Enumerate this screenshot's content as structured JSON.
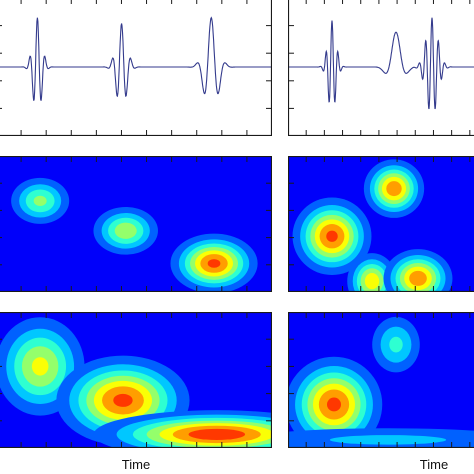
{
  "chart_data": [
    {
      "type": "line",
      "panel": "left-top",
      "title": "",
      "xlabel": "",
      "ylabel": "",
      "xlim": [
        0,
        10
      ],
      "ylim": [
        -1,
        1
      ],
      "grid": false,
      "series": [
        {
          "color": "#333a8c",
          "wavelets": [
            {
              "center": 1.5,
              "amplitude": 0.85,
              "period": 0.28,
              "width": 0.22
            },
            {
              "center": 4.55,
              "amplitude": 0.75,
              "period": 0.34,
              "width": 0.26
            },
            {
              "center": 7.8,
              "amplitude": 0.85,
              "period": 0.55,
              "width": 0.33
            }
          ]
        }
      ]
    },
    {
      "type": "line",
      "panel": "right-top",
      "title": "",
      "xlabel": "",
      "ylabel": "",
      "xlim": [
        0,
        10
      ],
      "ylim": [
        -1,
        1
      ],
      "grid": false,
      "series": [
        {
          "color": "#333a8c",
          "wavelets": [
            {
              "center": 2.2,
              "amplitude": 0.8,
              "period": 0.3,
              "width": 0.28
            },
            {
              "center": 5.4,
              "amplitude": 0.6,
              "period": 1.4,
              "width": 0.45
            },
            {
              "center": 7.2,
              "amplitude": 0.85,
              "period": 0.32,
              "width": 0.4
            }
          ]
        }
      ]
    },
    {
      "type": "heatmap",
      "panel": "left-middle",
      "title": "",
      "xlabel": "",
      "ylabel": "",
      "colormap": "jet",
      "xlim": [
        0,
        10
      ],
      "ylim": [
        0,
        10
      ],
      "blobs": [
        {
          "x": 1.6,
          "y": 6.7,
          "sx": 0.28,
          "sy": 0.9,
          "peak": 0.55
        },
        {
          "x": 4.7,
          "y": 4.5,
          "sx": 0.3,
          "sy": 0.9,
          "peak": 0.6
        },
        {
          "x": 7.9,
          "y": 2.1,
          "sx": 0.36,
          "sy": 1.0,
          "peak": 0.85
        }
      ]
    },
    {
      "type": "heatmap",
      "panel": "right-middle",
      "title": "",
      "xlabel": "",
      "ylabel": "",
      "colormap": "jet",
      "xlim": [
        0,
        10
      ],
      "ylim": [
        0,
        10
      ],
      "blobs": [
        {
          "x": 2.2,
          "y": 4.1,
          "sx": 0.45,
          "sy": 1.3,
          "peak": 0.85
        },
        {
          "x": 5.3,
          "y": 7.6,
          "sx": 0.35,
          "sy": 1.0,
          "peak": 0.8
        },
        {
          "x": 4.2,
          "y": 0.8,
          "sx": 0.3,
          "sy": 1.0,
          "peak": 0.7
        },
        {
          "x": 6.5,
          "y": 1.0,
          "sx": 0.4,
          "sy": 1.0,
          "peak": 0.8
        }
      ]
    },
    {
      "type": "heatmap",
      "panel": "left-bottom",
      "title": "",
      "xlabel": "Time",
      "ylabel": "",
      "colormap": "jet",
      "xlim": [
        0,
        10
      ],
      "ylim": [
        0,
        10
      ],
      "blobs": [
        {
          "x": 1.6,
          "y": 6.0,
          "sx": 0.4,
          "sy": 1.8,
          "peak": 0.65
        },
        {
          "x": 4.6,
          "y": 3.5,
          "sx": 0.55,
          "sy": 1.5,
          "peak": 0.85
        },
        {
          "x": 8.0,
          "y": 1.0,
          "sx": 1.0,
          "sy": 0.8,
          "peak": 0.9
        }
      ]
    },
    {
      "type": "heatmap",
      "panel": "right-bottom",
      "title": "",
      "xlabel": "Time",
      "ylabel": "",
      "colormap": "jet",
      "xlim": [
        0,
        10
      ],
      "ylim": [
        0,
        10
      ],
      "blobs": [
        {
          "x": 2.3,
          "y": 3.2,
          "sx": 0.55,
          "sy": 1.6,
          "peak": 0.85
        },
        {
          "x": 5.4,
          "y": 7.6,
          "sx": 0.35,
          "sy": 1.2,
          "peak": 0.45
        },
        {
          "x": 5.0,
          "y": 0.6,
          "sx": 2.5,
          "sy": 0.6,
          "peak": 0.35
        }
      ]
    }
  ]
}
